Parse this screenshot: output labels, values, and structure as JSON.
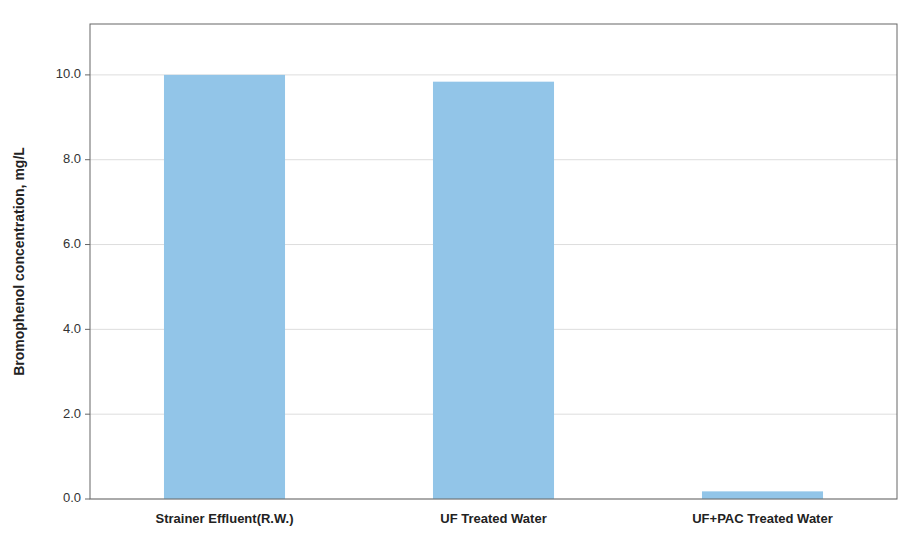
{
  "chart_data": {
    "type": "bar",
    "ylabel": "Bromophenol concentration, mg/L",
    "categories": [
      "Strainer Effluent(R.W.)",
      "UF Treated Water",
      "UF+PAC Treated Water"
    ],
    "values": [
      10.0,
      9.84,
      0.18
    ],
    "color": "#92C5E8",
    "ylim": [
      0,
      11.2
    ],
    "yticks": [
      {
        "value": 0.0,
        "label": "0.0"
      },
      {
        "value": 2.0,
        "label": "2.0"
      },
      {
        "value": 4.0,
        "label": "4.0"
      },
      {
        "value": 6.0,
        "label": "6.0"
      },
      {
        "value": 8.0,
        "label": "8.0"
      },
      {
        "value": 10.0,
        "label": "10.0"
      }
    ],
    "grid": true
  }
}
